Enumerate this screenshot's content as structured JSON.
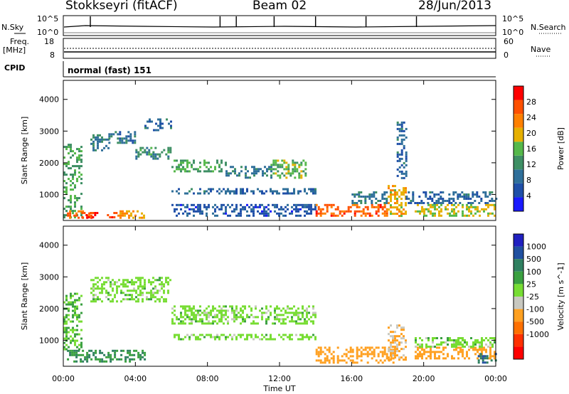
{
  "header": {
    "station": "Stokkseyri (fitACF)",
    "beam": "Beam 02",
    "date": "28/Jun/2013"
  },
  "top_panels": {
    "nsky_label": "N.Sky",
    "nsearch_label": "N.Search",
    "noise_ticks": [
      "10^5",
      "10^0"
    ],
    "freq_label": "Freq.",
    "freq_unit": "[MHz]",
    "freq_ticks": [
      "18",
      "8"
    ],
    "nave_label": "Nave",
    "nave_ticks": [
      "60",
      "0"
    ],
    "cpid_label": "CPID",
    "cpid_value": "normal (fast) 151"
  },
  "colors": {
    "power": [
      "#1a1aff",
      "#1f4fa8",
      "#2f6f9a",
      "#3e8f64",
      "#55b84a",
      "#e6b000",
      "#ff8000",
      "#ff5000",
      "#ff0000"
    ],
    "velocity": [
      "#2020c0",
      "#2050a0",
      "#2f8060",
      "#3aa040",
      "#77dd33",
      "#c8c8c0",
      "#ffa020",
      "#ff7000",
      "#ff3000",
      "#ff0000"
    ]
  },
  "chart_data": [
    {
      "type": "heatmap",
      "title": "Power",
      "xlabel": "Time UT",
      "ylabel": "Slant Range [km]",
      "x_range": [
        "00:00",
        "24:00"
      ],
      "x_ticks": [
        "00:00",
        "04:00",
        "08:00",
        "12:00",
        "16:00",
        "20:00",
        "00:00"
      ],
      "ylim": [
        180,
        4600
      ],
      "y_ticks": [
        1000,
        2000,
        3000,
        4000
      ],
      "colorbar": {
        "label": "Power [dB]",
        "min": 0,
        "max": 32,
        "ticks": [
          4,
          8,
          12,
          16,
          20,
          24,
          28
        ]
      },
      "regions": [
        {
          "t0": 0.0,
          "t1": 1.0,
          "r0": 300,
          "r1": 2600,
          "v": 14
        },
        {
          "t0": 0.2,
          "t1": 1.6,
          "r0": 250,
          "r1": 500,
          "v": 26
        },
        {
          "t0": 1.0,
          "t1": 3.0,
          "r0": 250,
          "r1": 450,
          "v": 28
        },
        {
          "t0": 3.0,
          "t1": 4.5,
          "r0": 250,
          "r1": 500,
          "v": 22
        },
        {
          "t0": 1.5,
          "t1": 2.5,
          "r0": 2400,
          "r1": 2900,
          "v": 10
        },
        {
          "t0": 2.5,
          "t1": 4.0,
          "r0": 2600,
          "r1": 3000,
          "v": 9
        },
        {
          "t0": 4.0,
          "t1": 6.0,
          "r0": 2100,
          "r1": 2500,
          "v": 12
        },
        {
          "t0": 6.0,
          "t1": 9.0,
          "r0": 1700,
          "r1": 2100,
          "v": 14
        },
        {
          "t0": 9.0,
          "t1": 11.5,
          "r0": 1500,
          "r1": 1900,
          "v": 10
        },
        {
          "t0": 11.5,
          "t1": 13.5,
          "r0": 1500,
          "r1": 2100,
          "v": 16
        },
        {
          "t0": 4.5,
          "t1": 6.0,
          "r0": 3000,
          "r1": 3400,
          "v": 8
        },
        {
          "t0": 6.0,
          "t1": 14.0,
          "r0": 350,
          "r1": 700,
          "v": 6
        },
        {
          "t0": 6.0,
          "t1": 14.0,
          "r0": 1050,
          "r1": 1200,
          "v": 8
        },
        {
          "t0": 14.0,
          "t1": 18.0,
          "r0": 300,
          "r1": 700,
          "v": 26
        },
        {
          "t0": 16.0,
          "t1": 18.0,
          "r0": 700,
          "r1": 1100,
          "v": 10
        },
        {
          "t0": 18.0,
          "t1": 19.0,
          "r0": 300,
          "r1": 1300,
          "v": 20
        },
        {
          "t0": 19.5,
          "t1": 24.0,
          "r0": 300,
          "r1": 700,
          "v": 18
        },
        {
          "t0": 19.0,
          "t1": 24.0,
          "r0": 700,
          "r1": 1100,
          "v": 8
        },
        {
          "t0": 18.5,
          "t1": 19.0,
          "r0": 1500,
          "r1": 3300,
          "v": 8
        }
      ]
    },
    {
      "type": "heatmap",
      "title": "Velocity",
      "xlabel": "Time UT",
      "ylabel": "Slant Range [km]",
      "x_range": [
        "00:00",
        "24:00"
      ],
      "x_ticks": [
        "00:00",
        "04:00",
        "08:00",
        "12:00",
        "16:00",
        "20:00",
        "00:00"
      ],
      "ylim": [
        180,
        4600
      ],
      "y_ticks": [
        1000,
        2000,
        3000,
        4000
      ],
      "colorbar": {
        "label": "Velocity [m s^-1]",
        "ticks": [
          1000,
          500,
          100,
          25,
          -25,
          -100,
          -500,
          -1000
        ]
      },
      "regions": [
        {
          "t0": 0.2,
          "t1": 4.5,
          "r0": 300,
          "r1": 700,
          "v": 100
        },
        {
          "t0": 0.0,
          "t1": 1.0,
          "r0": 700,
          "r1": 2500,
          "v": 25
        },
        {
          "t0": 1.5,
          "t1": 6.0,
          "r0": 2200,
          "r1": 3000,
          "v": 0
        },
        {
          "t0": 6.0,
          "t1": 14.0,
          "r0": 1500,
          "r1": 2100,
          "v": 0
        },
        {
          "t0": 6.0,
          "t1": 14.0,
          "r0": 1050,
          "r1": 1200,
          "v": 0
        },
        {
          "t0": 14.0,
          "t1": 18.5,
          "r0": 300,
          "r1": 800,
          "v": -300
        },
        {
          "t0": 18.0,
          "t1": 19.0,
          "r0": 400,
          "r1": 1500,
          "v": -100
        },
        {
          "t0": 19.5,
          "t1": 24.0,
          "r0": 400,
          "r1": 800,
          "v": -200
        },
        {
          "t0": 19.5,
          "t1": 24.0,
          "r0": 800,
          "r1": 1100,
          "v": 0
        },
        {
          "t0": 23.0,
          "t1": 24.0,
          "r0": 300,
          "r1": 600,
          "v": 500
        }
      ]
    }
  ]
}
